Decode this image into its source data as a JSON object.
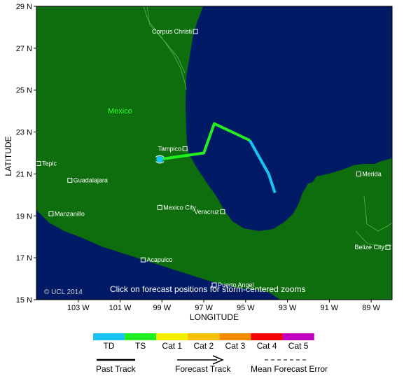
{
  "map": {
    "lon_range": [
      -105,
      -88
    ],
    "lat_range": [
      15,
      29
    ],
    "colors": {
      "ocean": "#001a66",
      "land": "#0e6e0e",
      "border": "#4fb84f",
      "frame": "#000000"
    },
    "y_axis_title": "LATITUDE",
    "x_axis_title": "LONGITUDE",
    "lat_ticks": [
      {
        "value": 29,
        "label": "29 N"
      },
      {
        "value": 27,
        "label": "27 N"
      },
      {
        "value": 25,
        "label": "25 N"
      },
      {
        "value": 23,
        "label": "23 N"
      },
      {
        "value": 21,
        "label": "21 N"
      },
      {
        "value": 19,
        "label": "19 N"
      },
      {
        "value": 17,
        "label": "17 N"
      },
      {
        "value": 15,
        "label": "15 N"
      }
    ],
    "lon_ticks": [
      {
        "value": -103,
        "label": "103 W"
      },
      {
        "value": -101,
        "label": "101 W"
      },
      {
        "value": -99,
        "label": "99 W"
      },
      {
        "value": -97,
        "label": "97 W"
      },
      {
        "value": -95,
        "label": "95 W"
      },
      {
        "value": -93,
        "label": "93 W"
      },
      {
        "value": -91,
        "label": "91 W"
      },
      {
        "value": -89,
        "label": "89 W"
      }
    ],
    "country_label": "Mexico",
    "cities": [
      {
        "name": "Corpus Christi",
        "lon": -97.4,
        "lat": 27.8,
        "label_side": "left"
      },
      {
        "name": "Tampico",
        "lon": -97.9,
        "lat": 22.2,
        "label_side": "left"
      },
      {
        "name": "Tepic",
        "lon": -104.9,
        "lat": 21.5,
        "label_side": "right"
      },
      {
        "name": "Guadalajara",
        "lon": -103.4,
        "lat": 20.7,
        "label_side": "right"
      },
      {
        "name": "Manzanillo",
        "lon": -104.3,
        "lat": 19.1,
        "label_side": "right"
      },
      {
        "name": "Mexico City",
        "lon": -99.1,
        "lat": 19.4,
        "label_side": "right"
      },
      {
        "name": "Veracruz",
        "lon": -96.1,
        "lat": 19.2,
        "label_side": "left"
      },
      {
        "name": "Acapulco",
        "lon": -99.9,
        "lat": 16.9,
        "label_side": "right"
      },
      {
        "name": "Puerto Angel",
        "lon": -96.5,
        "lat": 15.7,
        "label_side": "right"
      },
      {
        "name": "Merida",
        "lon": -89.6,
        "lat": 21.0,
        "label_side": "right"
      },
      {
        "name": "Belize City",
        "lon": -88.2,
        "lat": 17.5,
        "label_side": "left"
      }
    ],
    "past_track": {
      "category": "TD",
      "points": [
        [
          -93.6,
          20.1
        ],
        [
          -93.9,
          21.0
        ],
        [
          -94.8,
          22.6
        ]
      ]
    },
    "forecast_track": {
      "category": "TS",
      "points": [
        [
          -94.8,
          22.6
        ],
        [
          -96.5,
          23.4
        ],
        [
          -97.0,
          22.0
        ],
        [
          -99.1,
          21.7
        ]
      ]
    },
    "storm_position": {
      "lon": -99.1,
      "lat": 21.7
    },
    "copyright": "© UCL 2014",
    "instruction": "Click on forecast positions for storm-centered zooms"
  },
  "legend": {
    "categories": [
      {
        "label": "TD",
        "color": "#19c3f4"
      },
      {
        "label": "TS",
        "color": "#22ee22"
      },
      {
        "label": "Cat 1",
        "color": "#f4ee00"
      },
      {
        "label": "Cat 2",
        "color": "#f4c000"
      },
      {
        "label": "Cat 3",
        "color": "#f48a00"
      },
      {
        "label": "Cat 4",
        "color": "#f40000"
      },
      {
        "label": "Cat 5",
        "color": "#c000c0"
      }
    ],
    "past_track_label": "Past Track",
    "forecast_track_label": "Forecast Track",
    "error_label": "Mean Forecast Error"
  }
}
